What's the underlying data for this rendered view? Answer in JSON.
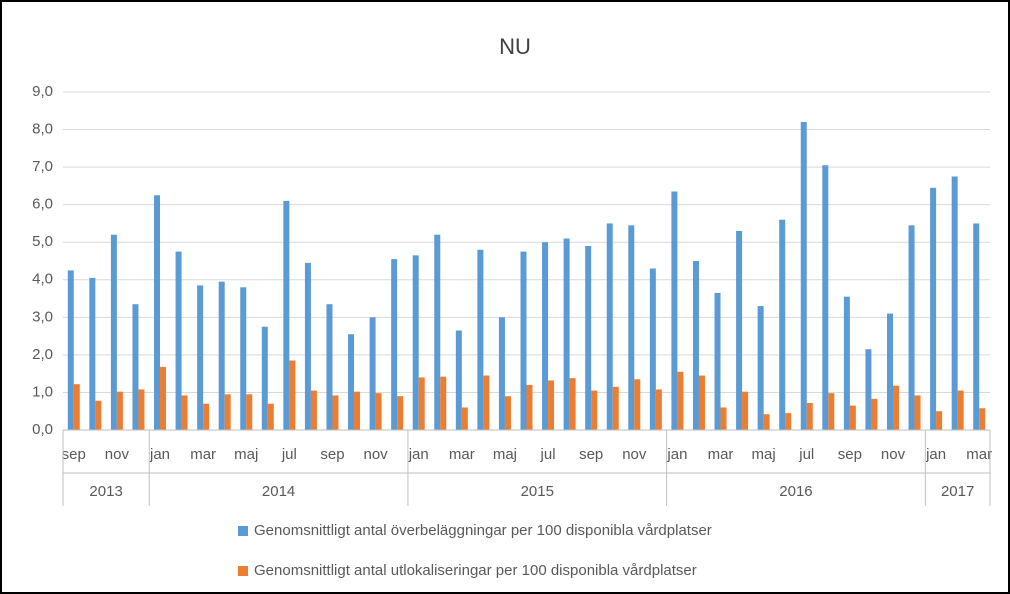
{
  "chart_data": {
    "type": "bar",
    "title": "NU",
    "categories": [
      "sep",
      null,
      "nov",
      null,
      "jan",
      null,
      "mar",
      null,
      "maj",
      null,
      "jul",
      null,
      "sep",
      null,
      "nov",
      null,
      "jan",
      null,
      "mar",
      null,
      "maj",
      null,
      "jul",
      null,
      "sep",
      null,
      "nov",
      null,
      "jan",
      null,
      "mar",
      null,
      "maj",
      null,
      "jul",
      null,
      "sep",
      null,
      "nov",
      null,
      "jan",
      null,
      "mar"
    ],
    "years": [
      "2013",
      null,
      null,
      null,
      "2014",
      null,
      null,
      null,
      null,
      null,
      null,
      null,
      null,
      null,
      null,
      null,
      "2015",
      null,
      null,
      null,
      null,
      null,
      null,
      null,
      null,
      null,
      null,
      null,
      "2016",
      null,
      null,
      null,
      null,
      null,
      null,
      null,
      null,
      null,
      null,
      null,
      "2017",
      null,
      null
    ],
    "series": [
      {
        "name": "Genomsnittligt antal överbeläggningar per 100 disponibla vårdplatser",
        "color": "#5b9bd5",
        "values": [
          4.25,
          4.05,
          5.2,
          3.35,
          6.25,
          4.75,
          3.85,
          3.95,
          3.8,
          2.75,
          6.1,
          4.45,
          3.35,
          2.55,
          3.0,
          4.55,
          4.65,
          5.2,
          2.65,
          4.8,
          3.0,
          4.75,
          5.0,
          5.1,
          4.9,
          5.5,
          5.45,
          4.3,
          6.35,
          4.5,
          3.65,
          5.3,
          3.3,
          5.6,
          8.2,
          7.05,
          3.55,
          2.15,
          3.1,
          5.45,
          6.45,
          6.75,
          5.5
        ]
      },
      {
        "name": "Genomsnittligt antal utlokaliseringar per 100 disponibla vårdplatser",
        "color": "#ed7d31",
        "values": [
          1.22,
          0.78,
          1.02,
          1.08,
          1.68,
          0.92,
          0.7,
          0.95,
          0.95,
          0.7,
          1.85,
          1.05,
          0.92,
          1.02,
          0.98,
          0.9,
          1.4,
          1.42,
          0.6,
          1.45,
          0.9,
          1.2,
          1.32,
          1.38,
          1.05,
          1.15,
          1.35,
          1.08,
          1.55,
          1.45,
          0.6,
          1.02,
          0.42,
          0.45,
          0.72,
          0.98,
          0.65,
          0.83,
          1.18,
          0.92,
          0.5,
          1.05,
          0.58
        ]
      }
    ],
    "ylim": [
      0,
      9
    ],
    "yticks": [
      {
        "value": 0,
        "label": "0,0"
      },
      {
        "value": 1,
        "label": "1,0"
      },
      {
        "value": 2,
        "label": "2,0"
      },
      {
        "value": 3,
        "label": "3,0"
      },
      {
        "value": 4,
        "label": "4,0"
      },
      {
        "value": 5,
        "label": "5,0"
      },
      {
        "value": 6,
        "label": "6,0"
      },
      {
        "value": 7,
        "label": "7,0"
      },
      {
        "value": 8,
        "label": "8,0"
      },
      {
        "value": 9,
        "label": "9,0"
      }
    ],
    "grid": true,
    "legend": "bottom"
  }
}
